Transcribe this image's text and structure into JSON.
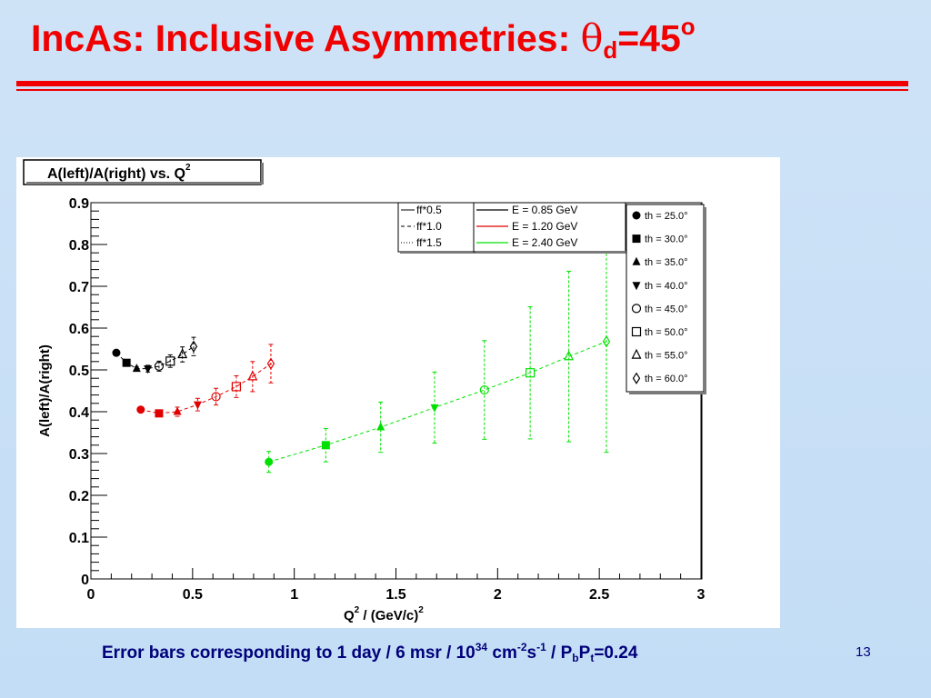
{
  "slide": {
    "title_main": "IncAs: Inclusive Asymmetries: ",
    "title_theta": "θ",
    "title_sub": "d",
    "title_eq": "=45",
    "title_sup": "o",
    "caption_part1": "Error bars corresponding to 1 day / 6 msr / 10",
    "caption_sup1": "34",
    "caption_part2": " cm",
    "caption_sup2": "-2",
    "caption_part3": "s",
    "caption_sup3": "-1",
    "caption_part4": " / P",
    "caption_sub1": "b",
    "caption_part5": "P",
    "caption_sub2": "t",
    "caption_part6": "=0.24",
    "slide_number": "13"
  },
  "chart_data": {
    "type": "scatter",
    "title": "A(left)/A(right) vs. Q",
    "title_sup": "2",
    "ylabel": "A(left)/A(right)",
    "xlabel": "Q",
    "xlabel_sup1": "2",
    "xlabel_rest": " / (GeV/c)",
    "xlabel_sup2": "2",
    "xlim": [
      0,
      3
    ],
    "ylim": [
      0,
      0.9
    ],
    "x_ticks": [
      "0",
      "0.5",
      "1",
      "1.5",
      "2",
      "2.5",
      "3"
    ],
    "y_ticks": [
      "0",
      "0.1",
      "0.2",
      "0.3",
      "0.4",
      "0.5",
      "0.6",
      "0.7",
      "0.8",
      "0.9"
    ],
    "grid": false,
    "legend_linestyles": [
      "ff*0.5",
      "ff*1.0",
      "ff*1.5"
    ],
    "legend_energies": [
      {
        "label": "E = 0.85 GeV",
        "color": "#000000"
      },
      {
        "label": "E = 1.20 GeV",
        "color": "#e00000"
      },
      {
        "label": "E = 2.40 GeV",
        "color": "#00e000"
      }
    ],
    "legend_angles": [
      {
        "label": "th = 25.0°",
        "marker": "circle"
      },
      {
        "label": "th = 30.0°",
        "marker": "square"
      },
      {
        "label": "th = 35.0°",
        "marker": "triangle-up"
      },
      {
        "label": "th = 40.0°",
        "marker": "triangle-down"
      },
      {
        "label": "th = 45.0°",
        "marker": "open-circle"
      },
      {
        "label": "th = 50.0°",
        "marker": "open-square"
      },
      {
        "label": "th = 55.0°",
        "marker": "open-triangle"
      },
      {
        "label": "th = 60.0°",
        "marker": "open-diamond"
      }
    ],
    "series": [
      {
        "name": "E = 0.85 GeV",
        "color": "#000000",
        "x": [
          0.125,
          0.175,
          0.225,
          0.28,
          0.335,
          0.39,
          0.45,
          0.505
        ],
        "y": [
          0.541,
          0.517,
          0.503,
          0.503,
          0.509,
          0.521,
          0.537,
          0.556
        ],
        "err": [
          0.0,
          0.0,
          0.004,
          0.008,
          0.012,
          0.015,
          0.018,
          0.022
        ]
      },
      {
        "name": "E = 1.20 GeV",
        "color": "#e00000",
        "x": [
          0.245,
          0.335,
          0.425,
          0.525,
          0.615,
          0.715,
          0.795,
          0.885
        ],
        "y": [
          0.405,
          0.396,
          0.4,
          0.417,
          0.436,
          0.46,
          0.484,
          0.515
        ],
        "err": [
          0.0,
          0.007,
          0.011,
          0.015,
          0.02,
          0.026,
          0.036,
          0.046
        ]
      },
      {
        "name": "E = 2.40 GeV",
        "color": "#00e000",
        "x": [
          0.875,
          1.155,
          1.425,
          1.69,
          1.935,
          2.16,
          2.35,
          2.535
        ],
        "y": [
          0.28,
          0.32,
          0.363,
          0.41,
          0.452,
          0.493,
          0.532,
          0.568
        ],
        "err": [
          0.025,
          0.04,
          0.06,
          0.085,
          0.118,
          0.158,
          0.204,
          0.265
        ]
      }
    ]
  }
}
